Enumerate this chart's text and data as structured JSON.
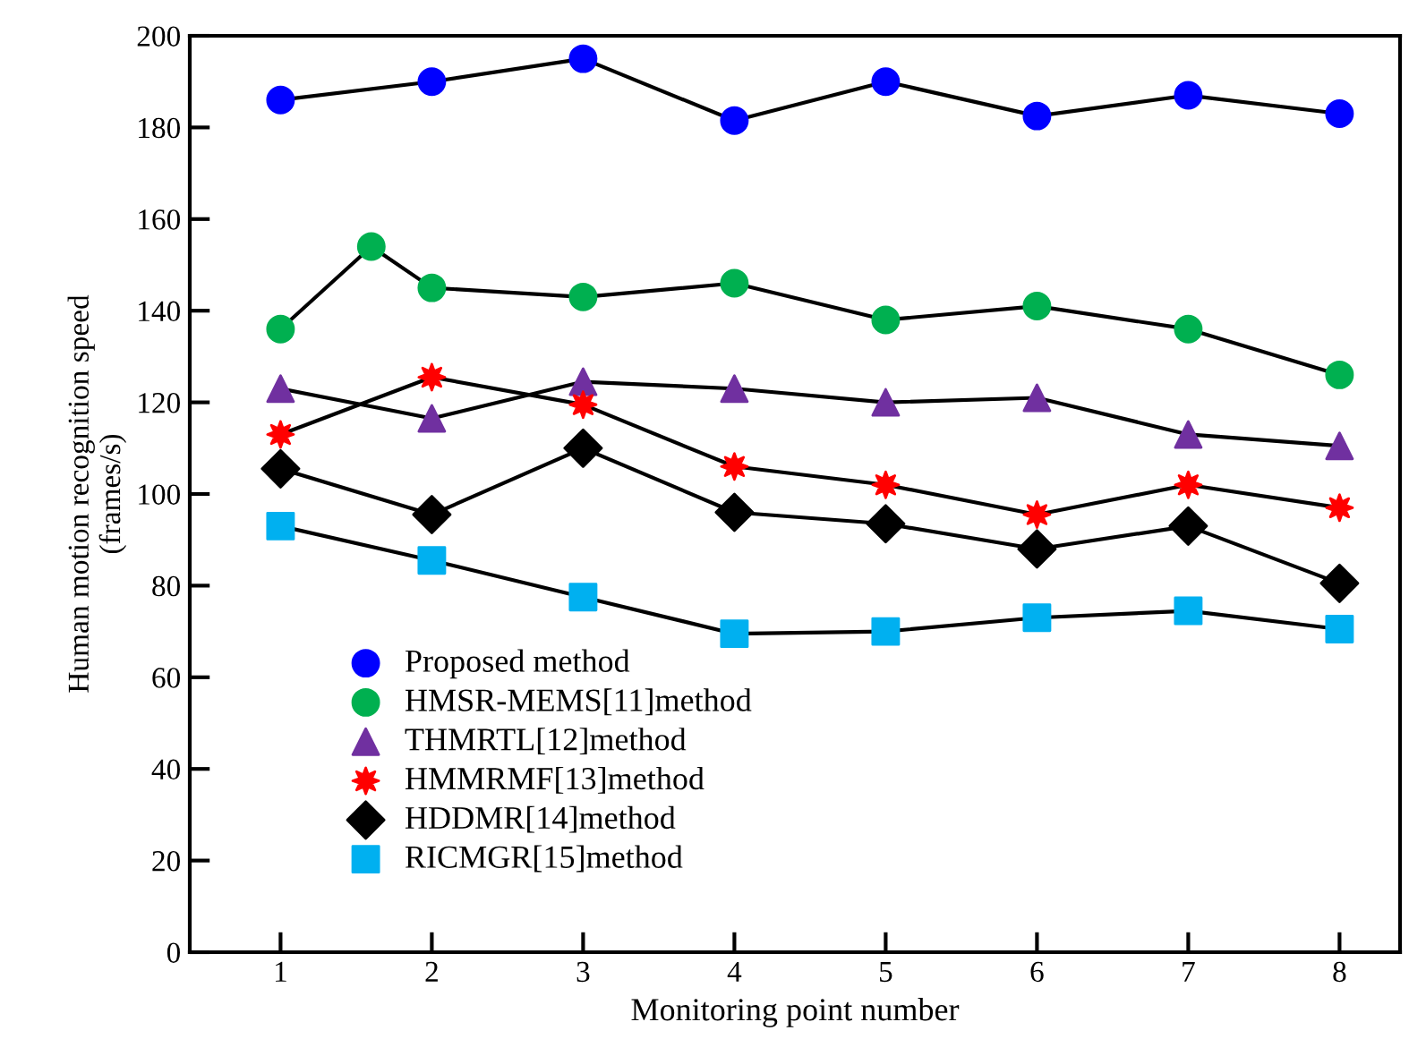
{
  "chart_data": {
    "type": "line",
    "xlabel": "Monitoring point number",
    "ylabel": "Human motion recognition speed\n(frames/s)",
    "x": [
      1,
      2,
      3,
      4,
      5,
      6,
      7,
      8
    ],
    "xlim": [
      0.4,
      8.4
    ],
    "xticks": [
      1,
      2,
      3,
      4,
      5,
      6,
      7,
      8
    ],
    "ylim": [
      0,
      200
    ],
    "yticks": [
      0,
      20,
      40,
      60,
      80,
      100,
      120,
      140,
      160,
      180,
      200
    ],
    "grid": false,
    "legend": "bottom left",
    "line_style": "solid",
    "series": [
      {
        "name": "Proposed method",
        "color": "#0000ff",
        "marker": "circle",
        "values": [
          186,
          190,
          195,
          181.5,
          190,
          182.5,
          187,
          183
        ]
      },
      {
        "name": "HMSR-MEMS[11]method",
        "color": "#00b050",
        "marker": "circle",
        "x": [
          1,
          1.6,
          2,
          3,
          4,
          5,
          6,
          7,
          8
        ],
        "values": [
          136,
          154,
          145,
          143,
          146,
          138,
          141,
          136,
          126
        ]
      },
      {
        "name": "THMRTL[12]method",
        "color": "#7030a0",
        "marker": "triangle",
        "values": [
          123,
          116.5,
          124.5,
          123,
          120,
          121,
          113,
          110.5
        ]
      },
      {
        "name": "HMMRMF[13]method",
        "color": "#ff0000",
        "marker": "star",
        "values": [
          113,
          125.5,
          119.5,
          106,
          102,
          95.5,
          102,
          97
        ]
      },
      {
        "name": "HDDMR[14]method",
        "color": "#000000",
        "marker": "diamond",
        "values": [
          105.5,
          95.5,
          110,
          96,
          93.5,
          88,
          93,
          80.5
        ]
      },
      {
        "name": "RICMGR[15]method",
        "color": "#00b0f0",
        "marker": "square",
        "values": [
          93,
          85.5,
          77.5,
          69.5,
          70,
          73,
          74.5,
          70.5
        ]
      }
    ]
  }
}
